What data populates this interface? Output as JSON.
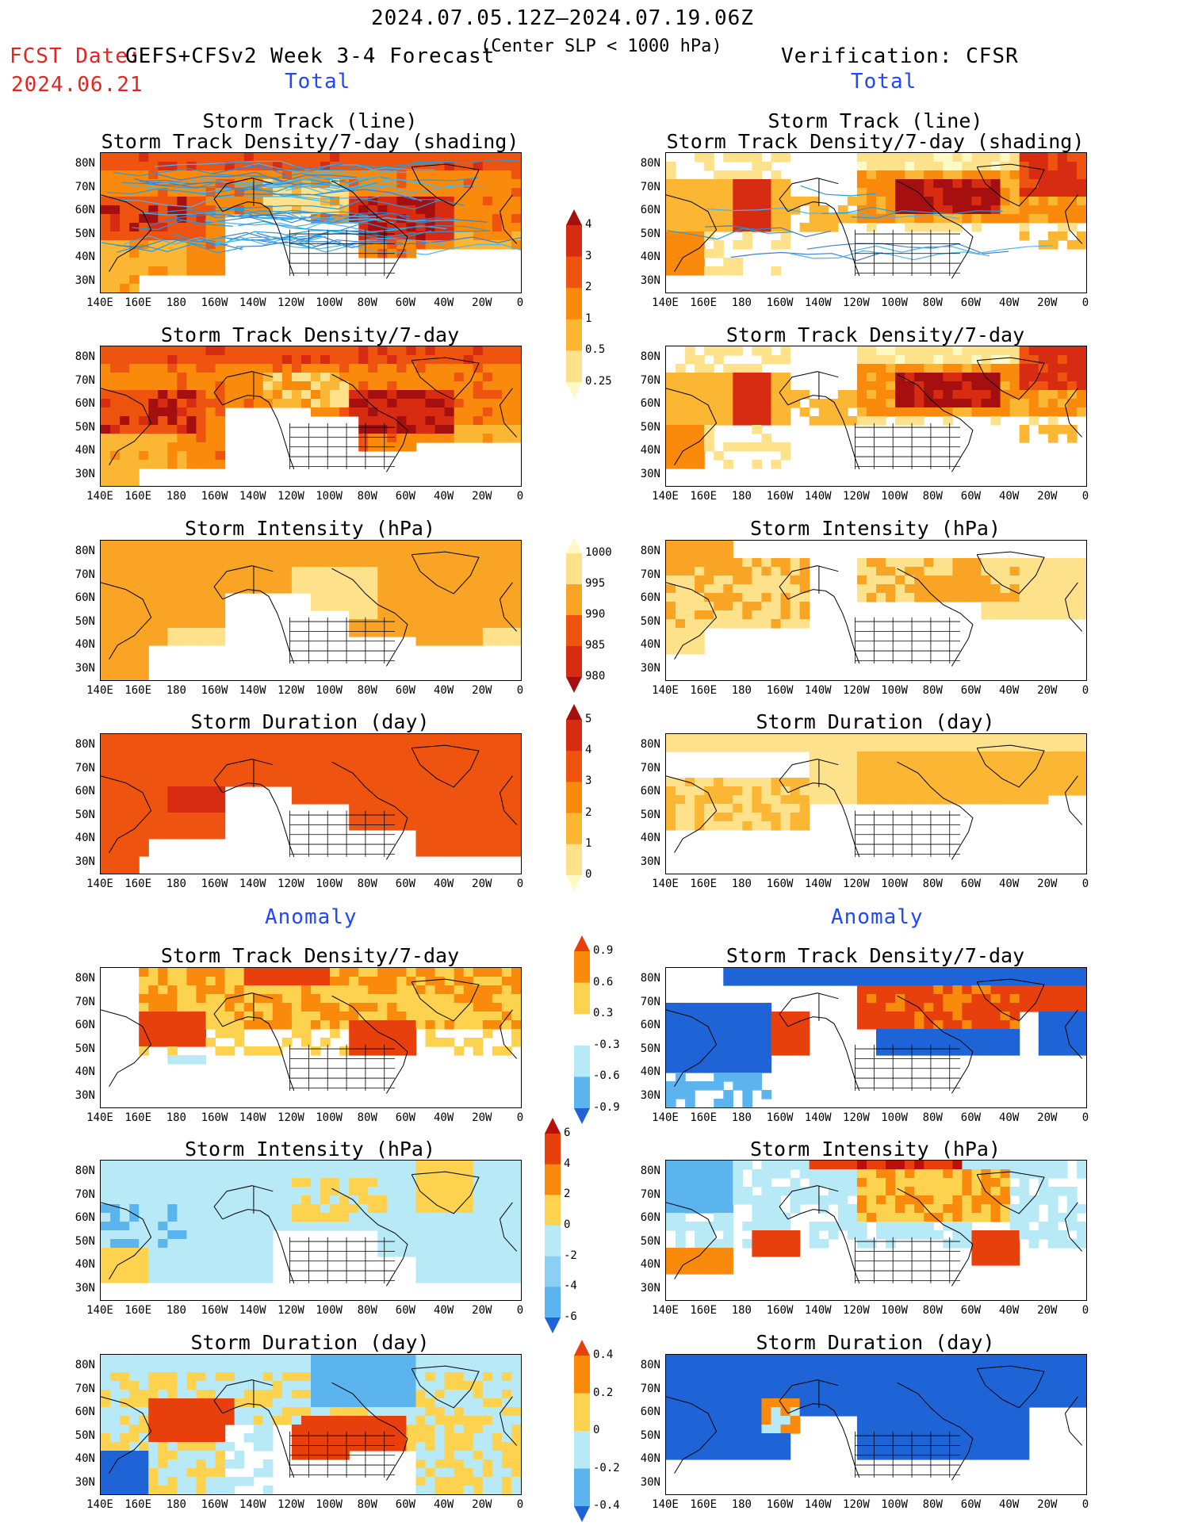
{
  "header": {
    "period": "2024.07.05.12Z–2024.07.19.06Z",
    "fcst_date_label": "FCST Date:",
    "fcst_date": "2024.06.21",
    "forecast_label": "GEFS+CFSv2 Week 3-4 Forecast",
    "criterion": "(Center SLP < 1000 hPa)",
    "verification": "Verification: CFSR"
  },
  "sections": {
    "total_left": "Total",
    "total_right": "Total",
    "anomaly_left": "Anomaly",
    "anomaly_right": "Anomaly"
  },
  "panel_titles": {
    "track_line": "Storm Track (line)",
    "track_density_shading": "Storm Track Density/7-day (shading)",
    "track_density": "Storm Track Density/7-day",
    "intensity": "Storm Intensity (hPa)",
    "duration": "Storm Duration (day)"
  },
  "axes": {
    "lat_labels": [
      "80N",
      "70N",
      "60N",
      "50N",
      "40N",
      "30N"
    ],
    "lon_labels": [
      "140E",
      "160E",
      "180",
      "160W",
      "140W",
      "120W",
      "100W",
      "80W",
      "60W",
      "40W",
      "20W",
      "0"
    ]
  },
  "colorbars": [
    {
      "id": "density_total",
      "labels": [
        "4",
        "3",
        "2",
        "1",
        "0.5",
        "0.25"
      ],
      "colors": [
        "#a50f0f",
        "#d72b12",
        "#ee5310",
        "#f98a0c",
        "#fbb634",
        "#fde28b",
        "#fff9c3"
      ]
    },
    {
      "id": "intensity_total",
      "labels": [
        "1000",
        "995",
        "990",
        "985",
        "980"
      ],
      "colors": [
        "#fff9c3",
        "#fde28b",
        "#f9a425",
        "#ee5310",
        "#d72b12",
        "#a50f0f"
      ]
    },
    {
      "id": "duration_total",
      "labels": [
        "5",
        "4",
        "3",
        "2",
        "1",
        "0"
      ],
      "colors": [
        "#a50f0f",
        "#d72b12",
        "#ee5310",
        "#f98a0c",
        "#fbb634",
        "#fde28b",
        "#fff9c3"
      ]
    },
    {
      "id": "density_anom",
      "labels": [
        "0.9",
        "0.6",
        "0.3",
        "-0.3",
        "-0.6",
        "-0.9"
      ],
      "colors": [
        "#e8400c",
        "#f98a0c",
        "#fcd24e",
        "#ffffff",
        "#b7e9f7",
        "#5cb4ee",
        "#1e64d6"
      ]
    },
    {
      "id": "intensity_anom",
      "labels": [
        "6",
        "4",
        "2",
        "0",
        "-2",
        "-4",
        "-6"
      ],
      "colors": [
        "#b8100a",
        "#e8400c",
        "#f98a0c",
        "#fcd24e",
        "#b7e9f7",
        "#8ccff4",
        "#5cb4ee",
        "#1e64d6"
      ]
    },
    {
      "id": "duration_anom",
      "labels": [
        "0.4",
        "0.2",
        "0",
        "-0.2",
        "-0.4"
      ],
      "colors": [
        "#e8400c",
        "#f98a0c",
        "#fcd24e",
        "#b7e9f7",
        "#5cb4ee",
        "#1e64d6"
      ]
    }
  ]
}
